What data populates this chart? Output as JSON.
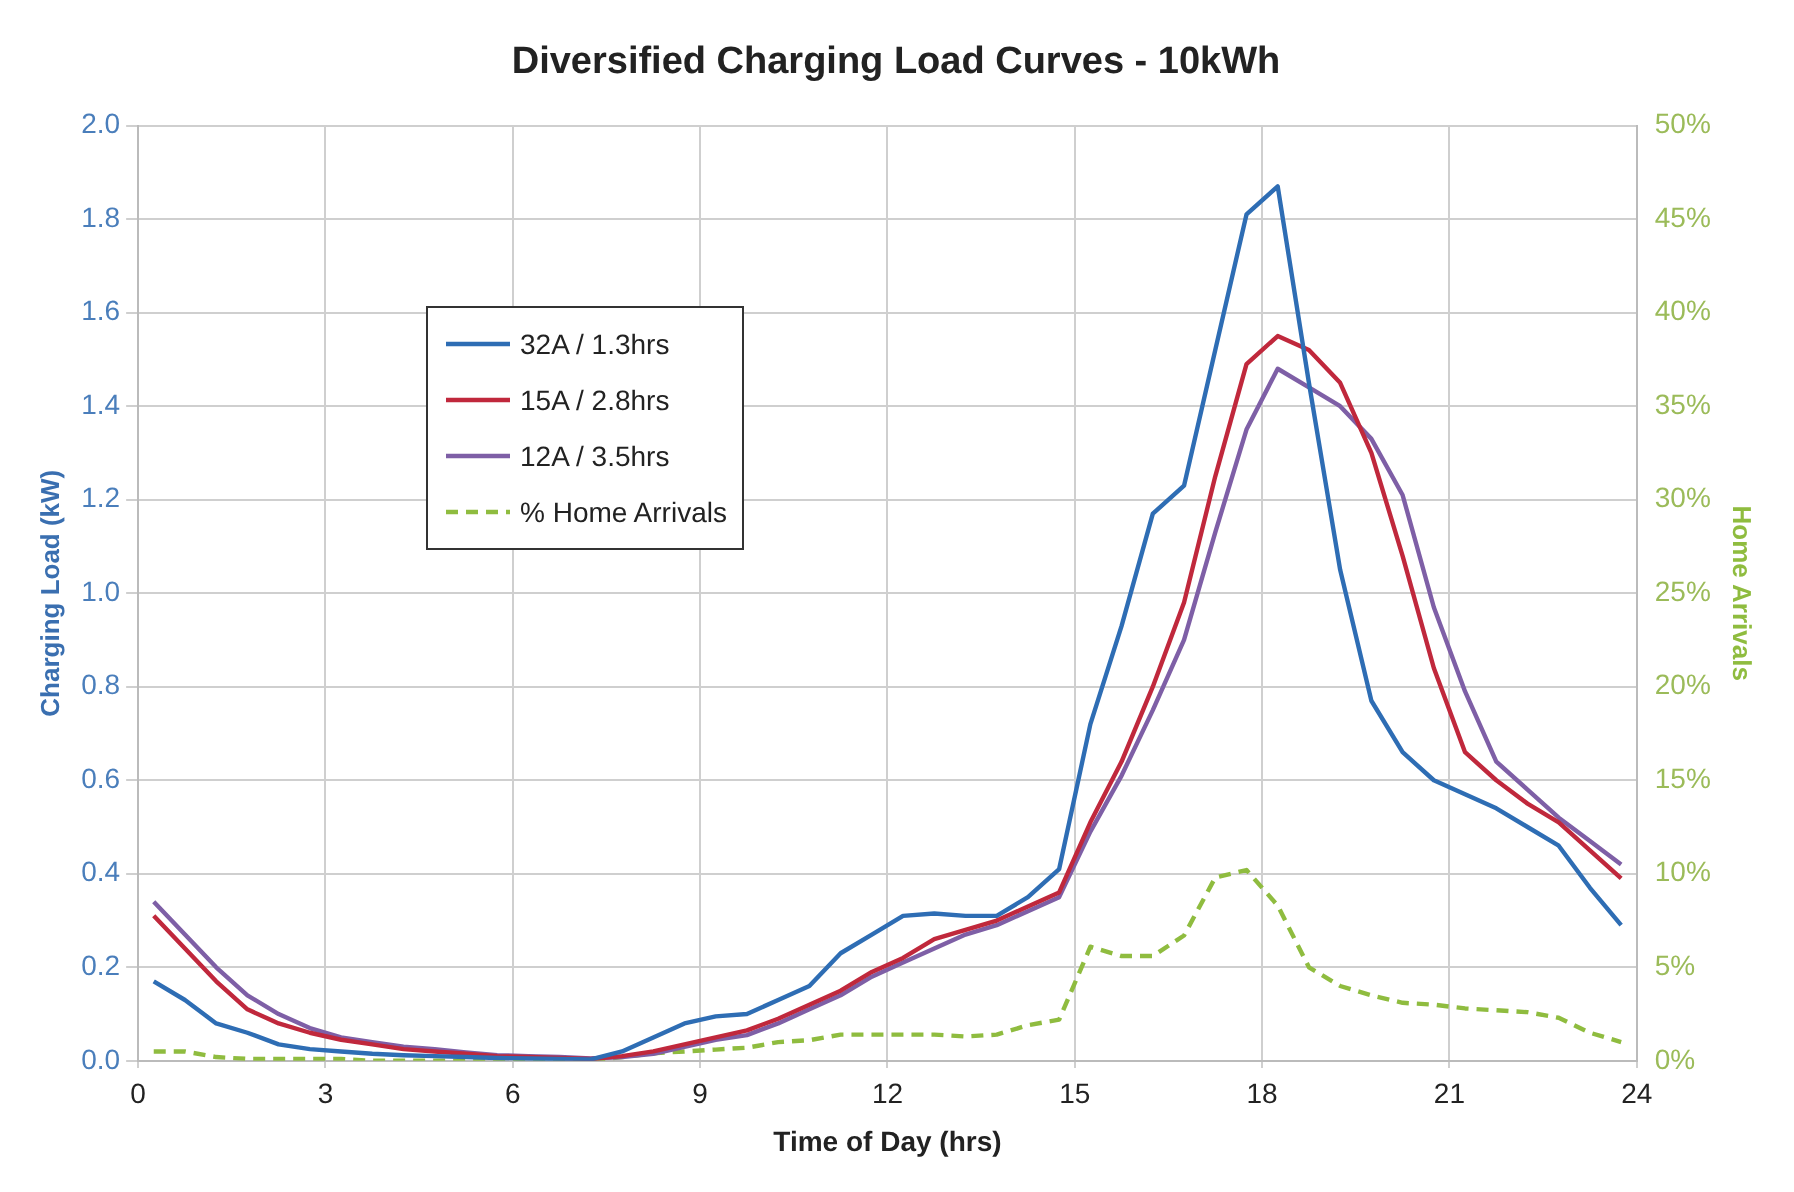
{
  "chart_data": {
    "type": "line",
    "title": "Diversified Charging Load Curves - 10kWh",
    "xlabel": "Time of Day (hrs)",
    "ylabel": "Charging Load (kW)",
    "y2label": "Home Arrivals",
    "x": [
      0.25,
      0.75,
      1.25,
      1.75,
      2.25,
      2.75,
      3.25,
      3.75,
      4.25,
      4.75,
      5.25,
      5.75,
      6.25,
      6.75,
      7.25,
      7.75,
      8.25,
      8.75,
      9.25,
      9.75,
      10.25,
      10.75,
      11.25,
      11.75,
      12.25,
      12.75,
      13.25,
      13.75,
      14.25,
      14.75,
      15.25,
      15.75,
      16.25,
      16.75,
      17.25,
      17.75,
      18.25,
      18.75,
      19.25,
      19.75,
      20.25,
      20.75,
      21.25,
      21.75,
      22.25,
      22.75,
      23.25,
      23.75
    ],
    "series": [
      {
        "name": "32A / 1.3hrs",
        "color": "#2e6db4",
        "values": [
          0.17,
          0.13,
          0.08,
          0.06,
          0.035,
          0.025,
          0.02,
          0.015,
          0.012,
          0.01,
          0.008,
          0.006,
          0.005,
          0.004,
          0.003,
          0.02,
          0.05,
          0.08,
          0.095,
          0.1,
          0.13,
          0.16,
          0.23,
          0.27,
          0.31,
          0.315,
          0.31,
          0.31,
          0.35,
          0.41,
          0.72,
          0.93,
          1.17,
          1.23,
          1.52,
          1.81,
          1.87,
          1.45,
          1.05,
          0.77,
          0.66,
          0.6,
          0.57,
          0.54,
          0.5,
          0.46,
          0.37,
          0.29
        ]
      },
      {
        "name": "15A / 2.8hrs",
        "color": "#c0283c",
        "values": [
          0.31,
          0.24,
          0.17,
          0.11,
          0.08,
          0.06,
          0.045,
          0.035,
          0.025,
          0.02,
          0.015,
          0.01,
          0.008,
          0.006,
          0.004,
          0.01,
          0.02,
          0.035,
          0.05,
          0.065,
          0.09,
          0.12,
          0.15,
          0.19,
          0.22,
          0.26,
          0.28,
          0.3,
          0.33,
          0.36,
          0.51,
          0.64,
          0.8,
          0.98,
          1.25,
          1.49,
          1.55,
          1.52,
          1.45,
          1.3,
          1.08,
          0.84,
          0.66,
          0.6,
          0.55,
          0.51,
          0.45,
          0.39
        ]
      },
      {
        "name": "12A / 3.5hrs",
        "color": "#7e5fa6",
        "values": [
          0.34,
          0.27,
          0.2,
          0.14,
          0.1,
          0.07,
          0.05,
          0.04,
          0.03,
          0.025,
          0.018,
          0.012,
          0.01,
          0.008,
          0.005,
          0.008,
          0.015,
          0.03,
          0.045,
          0.055,
          0.08,
          0.11,
          0.14,
          0.18,
          0.21,
          0.24,
          0.27,
          0.29,
          0.32,
          0.35,
          0.49,
          0.61,
          0.75,
          0.9,
          1.13,
          1.35,
          1.48,
          1.44,
          1.4,
          1.33,
          1.21,
          0.97,
          0.79,
          0.64,
          0.58,
          0.52,
          0.47,
          0.42
        ]
      },
      {
        "name": "% Home Arrivals",
        "color": "#8fbc3f",
        "axis": "y2",
        "line_style": "dashed",
        "values": [
          0.5,
          0.5,
          0.2,
          0.1,
          0.1,
          0.1,
          0.1,
          0.0,
          0.0,
          0.0,
          0.0,
          0.0,
          0.0,
          0.0,
          0.0,
          0.2,
          0.4,
          0.5,
          0.6,
          0.7,
          1.0,
          1.1,
          1.4,
          1.4,
          1.4,
          1.4,
          1.3,
          1.4,
          1.9,
          2.2,
          6.1,
          5.6,
          5.6,
          6.7,
          9.8,
          10.2,
          8.3,
          5.0,
          4.0,
          3.5,
          3.1,
          3.0,
          2.8,
          2.7,
          2.6,
          2.3,
          1.5,
          1.0
        ]
      }
    ],
    "xlim": [
      0,
      24
    ],
    "xticks": [
      0,
      3,
      6,
      9,
      12,
      15,
      18,
      21,
      24
    ],
    "ylim": [
      0,
      2
    ],
    "yticks": [
      {
        "value": 0,
        "label": "0.0"
      },
      0.2,
      0.4,
      0.6,
      0.8,
      {
        "value": 1,
        "label": "1.0"
      },
      1.2,
      1.4,
      1.6,
      1.8,
      {
        "value": 2,
        "label": "2.0"
      }
    ],
    "y2lim": [
      0,
      50
    ],
    "y2ticks": [
      {
        "value": 0,
        "label": "0%"
      },
      {
        "value": 5,
        "label": "5%"
      },
      {
        "value": 10,
        "label": "10%"
      },
      {
        "value": 15,
        "label": "15%"
      },
      {
        "value": 20,
        "label": "20%"
      },
      {
        "value": 25,
        "label": "25%"
      },
      {
        "value": 30,
        "label": "30%"
      },
      {
        "value": 35,
        "label": "35%"
      },
      {
        "value": 40,
        "label": "40%"
      },
      {
        "value": 45,
        "label": "45%"
      },
      {
        "value": 50,
        "label": "50%"
      }
    ],
    "grid": true,
    "legend": "top left",
    "marker": "none",
    "line_style": "solid"
  }
}
